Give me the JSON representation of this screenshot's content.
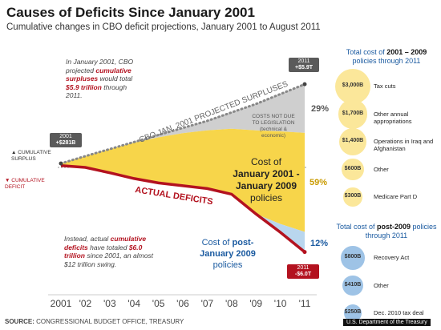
{
  "title": "Causes of Deficits Since January 2001",
  "subtitle": "Cumulative changes in CBO deficit projections, January 2001 to August 2011",
  "source_label": "SOURCE:",
  "source_text": "CONGRESSIONAL BUDGET OFFICE, TREASURY",
  "bottom_right_text": "U.S. Department of the Treasury",
  "notes": {
    "projected": [
      "In January 2001, CBO",
      "projected ",
      "cumulative surpluses",
      " would total ",
      "$5.9 trillion",
      " through 2011."
    ],
    "actual": [
      "Instead, actual ",
      "cumulative deficits",
      " have totaled ",
      "$6.0 trillion",
      " since 2001, an almost $12 trillion swing."
    ]
  },
  "labels": {
    "cumulative_surplus": "CUMULATIVE SURPLUS",
    "cumulative_deficit": "CUMULATIVE DEFICIT",
    "projection_line": "CBO JAN. 2001 PROJECTED SURPLUSES",
    "actual_deficits": "ACTUAL DEFICITS",
    "costs_not_due": "COSTS NOT DUE TO LEGISLATION (technical & economic)",
    "cost_jan_prefix": "Cost of",
    "cost_jan_bold": "January 2001 - January 2009",
    "cost_jan_suffix": "policies",
    "cost_post_prefix": "Cost of ",
    "cost_post_bold": "post-January 2009",
    "cost_post_suffix": "policies"
  },
  "chips": {
    "start_year": "2001",
    "start_value": "+$281B",
    "proj_year": "2011",
    "proj_value": "+$5.9T",
    "actual_year": "2011",
    "actual_value": "-$6.0T"
  },
  "chart_data": {
    "type": "area",
    "title": "Causes of Deficits Since January 2001",
    "xlabel": "",
    "ylabel": "",
    "x": [
      "2001",
      "'02",
      "'03",
      "'04",
      "'05",
      "'06",
      "'07",
      "'08",
      "'09",
      "'10",
      "'11"
    ],
    "ylim": [
      -6.5,
      6.5
    ],
    "series": [
      {
        "name": "CBO JAN. 2001 PROJECTED SURPLUSES",
        "values": [
          0.28,
          0.8,
          1.3,
          1.8,
          2.3,
          2.8,
          3.3,
          3.9,
          4.5,
          5.2,
          5.9
        ]
      },
      {
        "name": "ACTUAL DEFICITS",
        "values": [
          0.13,
          0.0,
          -0.38,
          -0.79,
          -1.1,
          -1.3,
          -1.5,
          -1.9,
          -3.3,
          -4.6,
          -6.0
        ]
      }
    ],
    "shares": [
      {
        "label": "COSTS NOT DUE TO LEGISLATION",
        "percent": "29%",
        "color": "#c8c8c8"
      },
      {
        "label": "Cost of January 2001 - January 2009 policies",
        "percent": "59%",
        "color": "#f7d54a"
      },
      {
        "label": "Cost of post-January 2009 policies",
        "percent": "12%",
        "color": "#9ec3e6"
      }
    ]
  },
  "panels": {
    "jan_title_prefix": "Total cost of ",
    "jan_title_bold": "2001 – 2009",
    "jan_title_suffix": " policies through 2011",
    "jan_items": [
      {
        "value": "$3,000B",
        "label": "Tax cuts",
        "amount": 3000
      },
      {
        "value": "$1,700B",
        "label": "Other annual appropriations",
        "amount": 1700
      },
      {
        "value": "$1,400B",
        "label": "Operations in Iraq and Afghanistan",
        "amount": 1400
      },
      {
        "value": "$600B",
        "label": "Other",
        "amount": 600
      },
      {
        "value": "$300B",
        "label": "Medicare Part D",
        "amount": 300
      }
    ],
    "post_title_prefix": "Total cost of ",
    "post_title_bold": "post-2009",
    "post_title_suffix": " policies through 2011",
    "post_items": [
      {
        "value": "$800B",
        "label": "Recovery Act",
        "amount": 800
      },
      {
        "value": "$410B",
        "label": "Other",
        "amount": 410
      },
      {
        "value": "$250B",
        "label": "Dec. 2010 tax deal",
        "amount": 250
      }
    ],
    "colors": {
      "jan": "#f7d54a",
      "jan_light": "#fbe79a",
      "post": "#9ec3e6",
      "text_highlight": "#1a5aa0"
    }
  },
  "colors": {
    "projection": "#888888",
    "actual": "#b3121f",
    "gray_fill": "#cfcfcf",
    "yellow_fill": "#f7d54a",
    "blue_fill": "#b9d6ee"
  }
}
